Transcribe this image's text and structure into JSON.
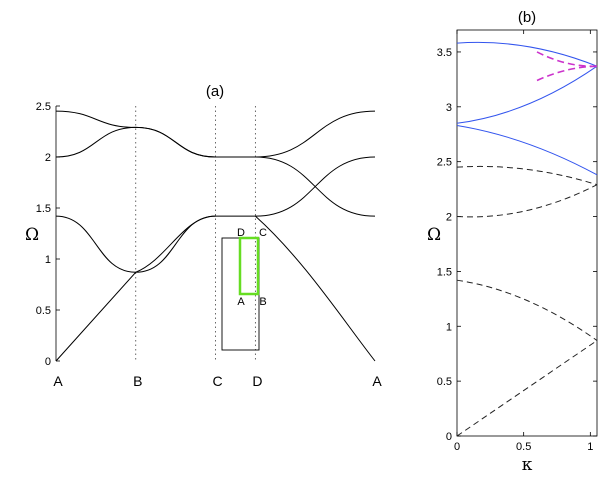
{
  "chart_data": [
    {
      "type": "line",
      "title": "(a)",
      "ylabel": "Ω",
      "ylim": [
        0,
        2.5
      ],
      "yticks": [
        "0",
        "0.5",
        "1",
        "1.5",
        "2",
        "2.5"
      ],
      "x_symmetry_points": [
        "A",
        "B",
        "C",
        "D",
        "A"
      ],
      "x_symmetry_positions": [
        0,
        1,
        2,
        2.5,
        4
      ],
      "series": [
        {
          "values": [
            [
              0,
              0
            ],
            [
              1,
              0.87
            ],
            [
              2,
              1.42
            ],
            [
              2.5,
              1.42
            ],
            [
              4,
              0
            ]
          ]
        },
        {
          "values": [
            [
              0,
              1.42
            ],
            [
              1,
              0.87
            ]
          ]
        },
        {
          "values": [
            [
              1,
              0.87
            ],
            [
              2,
              1.42
            ]
          ]
        },
        {
          "values": [
            [
              0,
              2.0
            ],
            [
              1,
              2.29
            ],
            [
              2,
              2.0
            ],
            [
              2.5,
              2.0
            ],
            [
              4,
              1.42
            ]
          ]
        },
        {
          "values": [
            [
              0,
              2.45
            ],
            [
              1,
              2.29
            ],
            [
              2,
              2.0
            ],
            [
              2.5,
              2.0
            ],
            [
              4,
              2.45
            ]
          ]
        },
        {
          "values": [
            [
              2.5,
              1.42
            ],
            [
              4,
              2.0
            ]
          ]
        }
      ],
      "inset": {
        "box_labels": [
          "D",
          "C",
          "A",
          "B"
        ],
        "highlight_labels": [
          "D",
          "C",
          "A",
          "B"
        ],
        "highlight_color": "#66dd22"
      }
    },
    {
      "type": "line",
      "title": "(b)",
      "xlabel": "κ",
      "ylabel": "Ω",
      "xlim": [
        0,
        1.05
      ],
      "ylim": [
        0,
        3.7
      ],
      "xticks": [
        "0",
        "0.5",
        "1"
      ],
      "yticks": [
        "0",
        "0.5",
        "1",
        "1.5",
        "2",
        "2.5",
        "3",
        "3.5"
      ],
      "colors": {
        "solid": "#3355ee",
        "magenta": "#cc33cc",
        "dashed": "#222222"
      },
      "series": [
        {
          "style": "dashed",
          "color": "#222222",
          "values": [
            [
              0,
              0
            ],
            [
              1.05,
              0.87
            ]
          ]
        },
        {
          "style": "dashed",
          "color": "#222222",
          "values": [
            [
              0,
              1.42
            ],
            [
              1.05,
              0.87
            ]
          ]
        },
        {
          "style": "dashed",
          "color": "#222222",
          "values": [
            [
              0,
              2.0
            ],
            [
              1.05,
              2.29
            ]
          ]
        },
        {
          "style": "dashed",
          "color": "#222222",
          "values": [
            [
              0,
              2.45
            ],
            [
              1.05,
              2.29
            ]
          ]
        },
        {
          "style": "solid",
          "color": "#3355ee",
          "values": [
            [
              0,
              2.83
            ],
            [
              1.05,
              2.38
            ]
          ]
        },
        {
          "style": "solid",
          "color": "#3355ee",
          "values": [
            [
              0,
              2.85
            ],
            [
              1.05,
              3.37
            ]
          ]
        },
        {
          "style": "solid",
          "color": "#3355ee",
          "values": [
            [
              0,
              3.58
            ],
            [
              1.05,
              3.37
            ]
          ]
        },
        {
          "style": "dashed",
          "color": "#cc33cc",
          "values": [
            [
              0.6,
              3.24
            ],
            [
              1.05,
              3.37
            ]
          ]
        },
        {
          "style": "dashed",
          "color": "#cc33cc",
          "values": [
            [
              0.6,
              3.5
            ],
            [
              1.05,
              3.37
            ]
          ]
        }
      ]
    }
  ]
}
